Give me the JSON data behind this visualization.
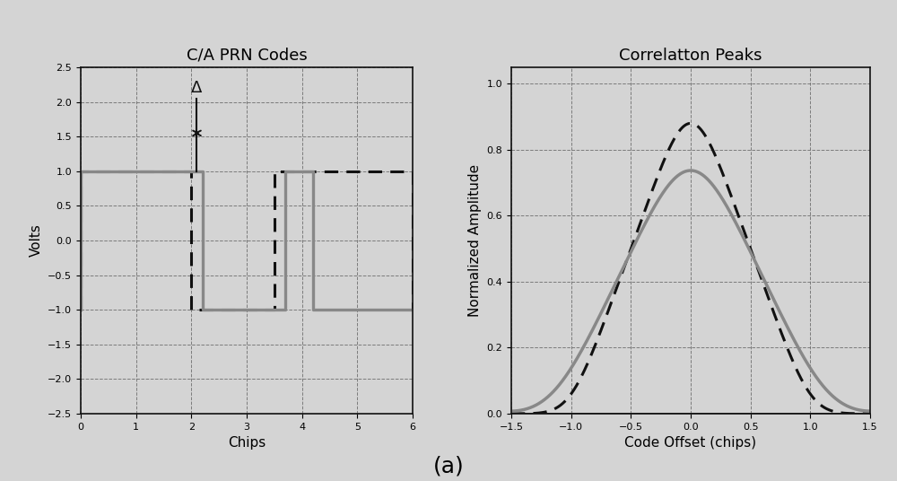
{
  "left_title": "C/A PRN Codes",
  "right_title": "Correlatton Peaks",
  "left_xlabel": "Chips",
  "left_ylabel": "Volts",
  "right_xlabel": "Code Offset (chips)",
  "right_ylabel": "Normalized Amplitude",
  "left_xlim": [
    0,
    6
  ],
  "left_ylim": [
    -2.5,
    2.5
  ],
  "left_xticks": [
    0,
    1,
    2,
    3,
    4,
    5,
    6
  ],
  "left_yticks": [
    -2.5,
    -2.0,
    -1.5,
    -1.0,
    -0.5,
    0.0,
    0.5,
    1.0,
    1.5,
    2.0,
    2.5
  ],
  "right_xlim": [
    -1.5,
    1.5
  ],
  "right_ylim": [
    0,
    1.05
  ],
  "right_xticks": [
    -1.5,
    -1.0,
    -0.5,
    0.0,
    0.5,
    1.0,
    1.5
  ],
  "right_yticks": [
    0.0,
    0.2,
    0.4,
    0.6,
    0.8,
    1.0
  ],
  "caption": "(a)",
  "bg_color": "#d4d4d4",
  "line_color_black": "#111111",
  "line_color_gray": "#888888",
  "title_fontsize": 13,
  "label_fontsize": 11,
  "tick_fontsize": 8,
  "caption_fontsize": 18
}
